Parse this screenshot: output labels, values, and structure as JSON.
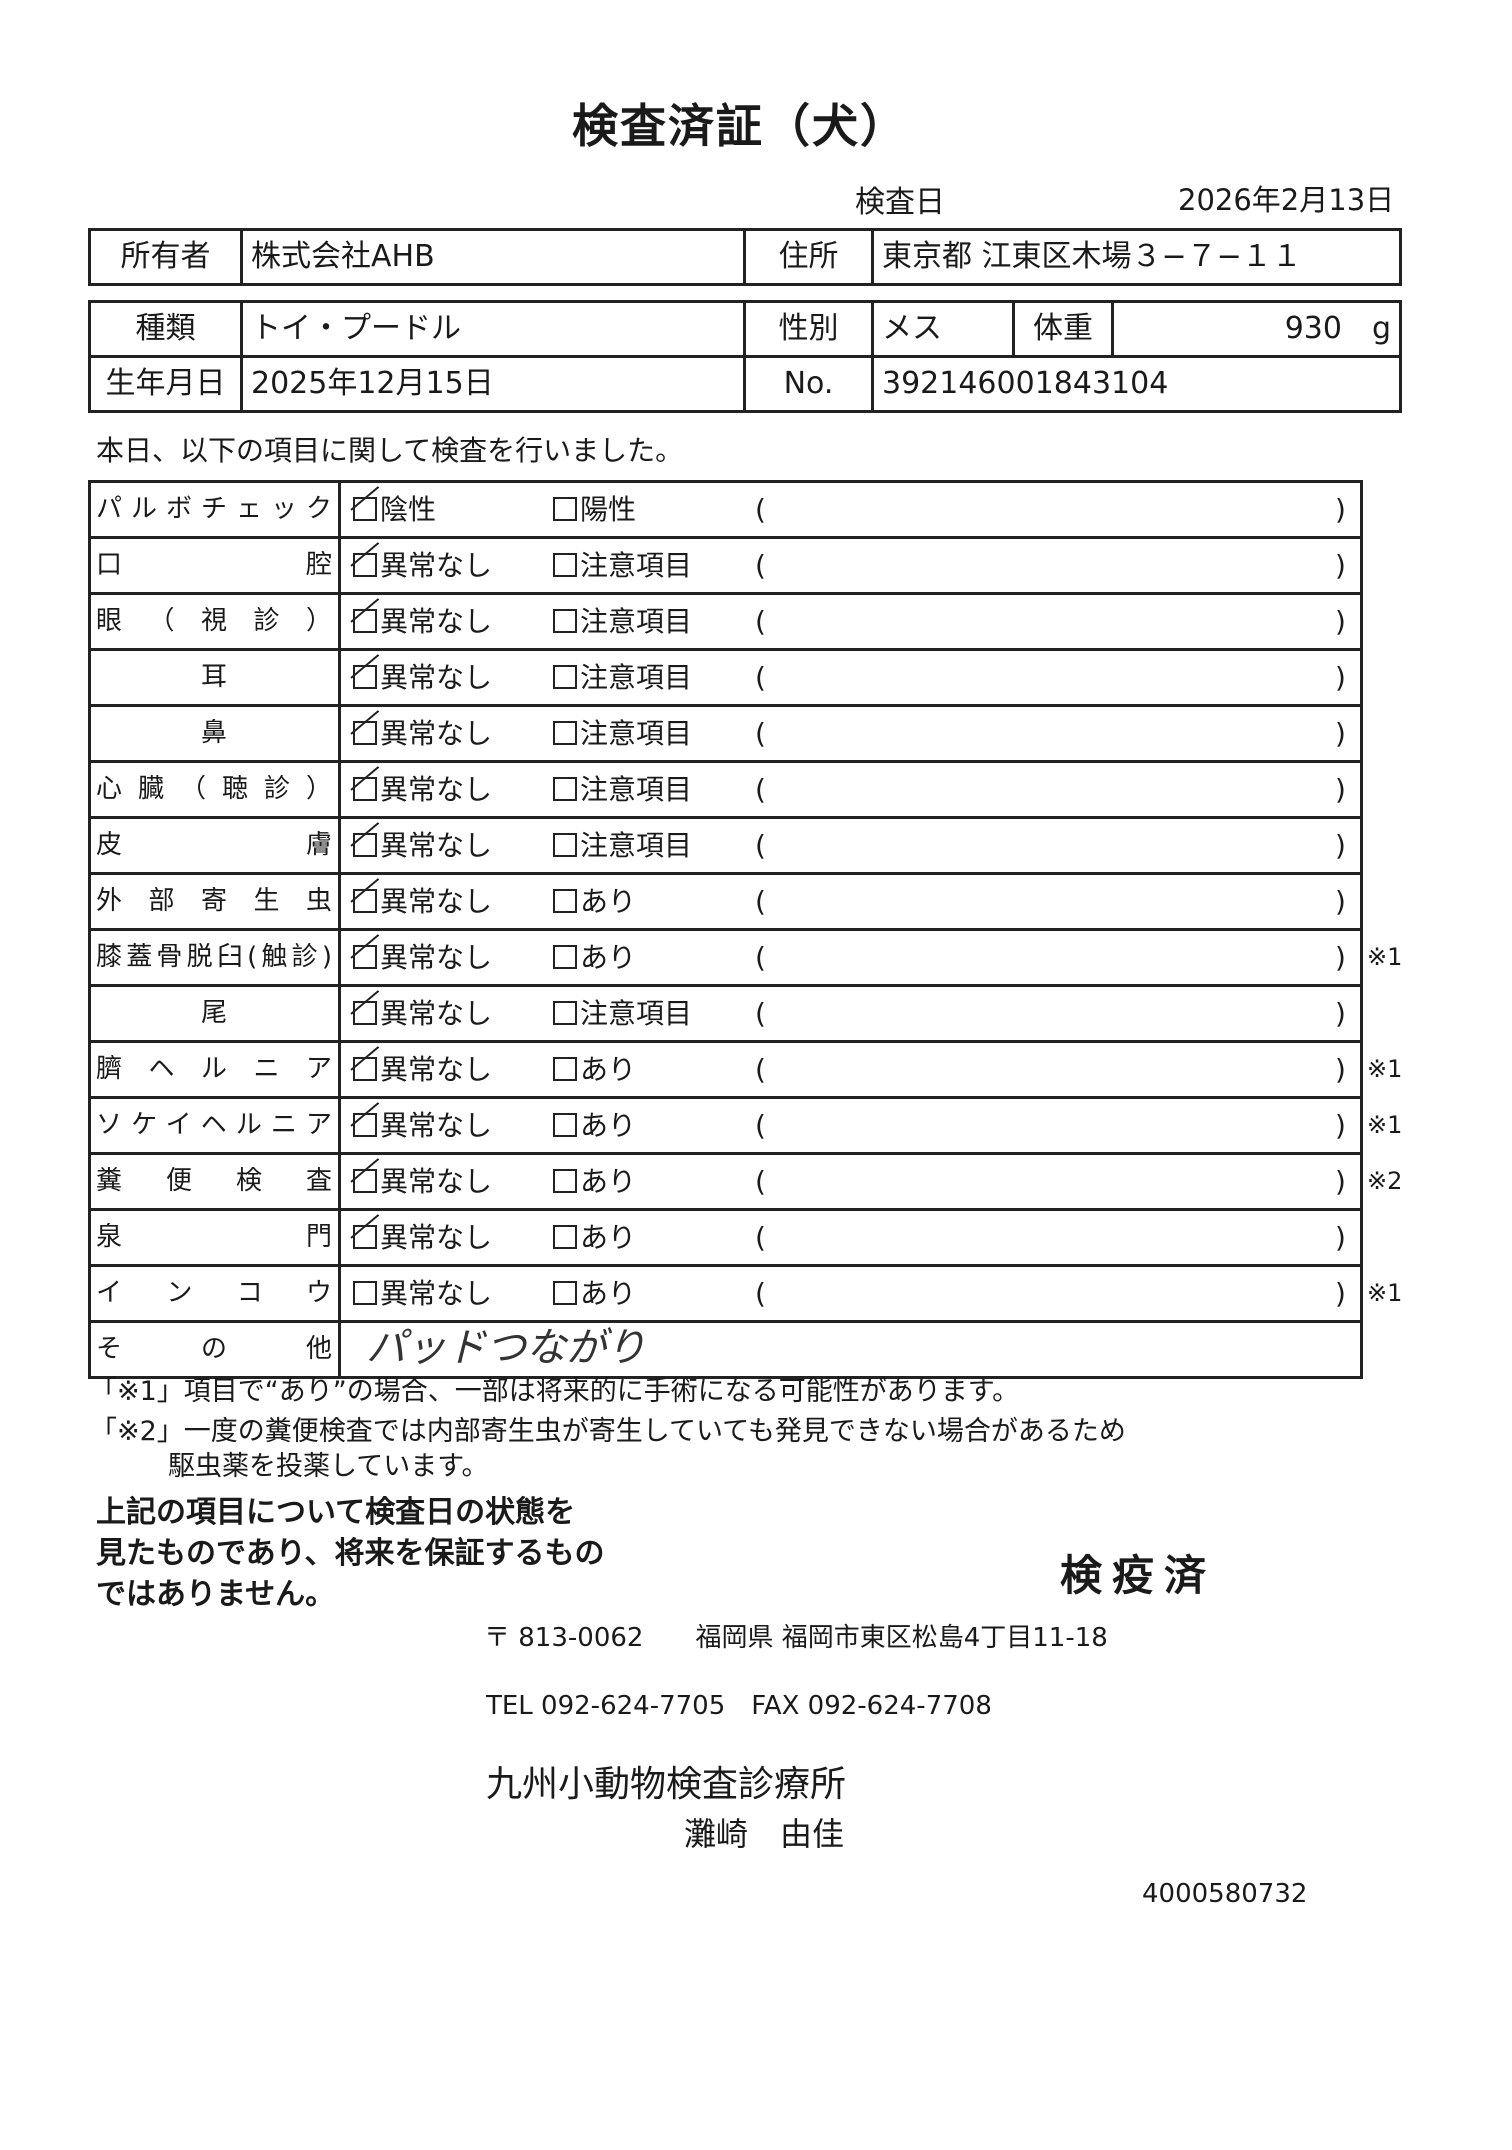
{
  "document": {
    "title": "検査済証（犬）",
    "inspection_date_label": "検査日",
    "inspection_date": "2026年2月13日"
  },
  "owner": {
    "owner_label": "所有者",
    "owner_value": "株式会社AHB",
    "address_label": "住所",
    "address_value": "東京都 江東区木場３−７−１１"
  },
  "animal": {
    "breed_label": "種類",
    "breed_value": "トイ・プードル",
    "sex_label": "性別",
    "sex_value": "メス",
    "weight_label": "体重",
    "weight_value": "930　g",
    "birth_label": "生年月日",
    "birth_value": "2025年12月15日",
    "no_label": "No.",
    "no_value": "392146001843104"
  },
  "intro": "本日、以下の項目に関して検査を行いました。",
  "checks": [
    {
      "label": "パルボチェック",
      "opt1": "陰性",
      "opt1_checked": true,
      "opt2": "陽性",
      "note": ""
    },
    {
      "label": "口腔",
      "opt1": "異常なし",
      "opt1_checked": true,
      "opt2": "注意項目",
      "note": ""
    },
    {
      "label": "眼（視診）",
      "opt1": "異常なし",
      "opt1_checked": true,
      "opt2": "注意項目",
      "note": ""
    },
    {
      "label": "耳",
      "opt1": "異常なし",
      "opt1_checked": true,
      "opt2": "注意項目",
      "note": "",
      "center": true
    },
    {
      "label": "鼻",
      "opt1": "異常なし",
      "opt1_checked": true,
      "opt2": "注意項目",
      "note": "",
      "center": true
    },
    {
      "label": "心臓（聴診）",
      "opt1": "異常なし",
      "opt1_checked": true,
      "opt2": "注意項目",
      "note": ""
    },
    {
      "label": "皮膚",
      "opt1": "異常なし",
      "opt1_checked": true,
      "opt2": "注意項目",
      "note": ""
    },
    {
      "label": "外部寄生虫",
      "opt1": "異常なし",
      "opt1_checked": true,
      "opt2": "あり",
      "note": ""
    },
    {
      "label": "膝蓋骨脱臼(触診)",
      "opt1": "異常なし",
      "opt1_checked": true,
      "opt2": "あり",
      "note": "※1"
    },
    {
      "label": "尾",
      "opt1": "異常なし",
      "opt1_checked": true,
      "opt2": "注意項目",
      "note": "",
      "center": true
    },
    {
      "label": "臍ヘルニア",
      "opt1": "異常なし",
      "opt1_checked": true,
      "opt2": "あり",
      "note": "※1"
    },
    {
      "label": "ソケイヘルニア",
      "opt1": "異常なし",
      "opt1_checked": true,
      "opt2": "あり",
      "note": "※1"
    },
    {
      "label": "糞便検査",
      "opt1": "異常なし",
      "opt1_checked": true,
      "opt2": "あり",
      "note": "※2"
    },
    {
      "label": "泉門",
      "opt1": "異常なし",
      "opt1_checked": true,
      "opt2": "あり",
      "note": ""
    },
    {
      "label": "インコウ",
      "opt1": "異常なし",
      "opt1_checked": false,
      "opt2": "あり",
      "note": "※1"
    }
  ],
  "other": {
    "label": "その他",
    "handwritten": "パッドつながり"
  },
  "paren_open": "(",
  "paren_close": ")",
  "footnotes": [
    "「※1」項目で“あり”の場合、一部は将来的に手術になる可能性があります。",
    "「※2」一度の糞便検査では内部寄生虫が寄生していても発見できない場合があるため",
    "駆虫薬を投薬しています。"
  ],
  "disclaimer": [
    "上記の項目について検査日の状態を",
    "見たものであり、将来を保証するもの",
    "ではありません。"
  ],
  "stamp": "検疫済",
  "clinic": {
    "address": "〒 813-0062　　福岡県 福岡市東区松島4丁目11-18",
    "tel": "TEL 092-624-7705　FAX 092-624-7708",
    "name": "九州小動物検査診療所",
    "person": "灘崎　由佳"
  },
  "serial": "4000580732"
}
